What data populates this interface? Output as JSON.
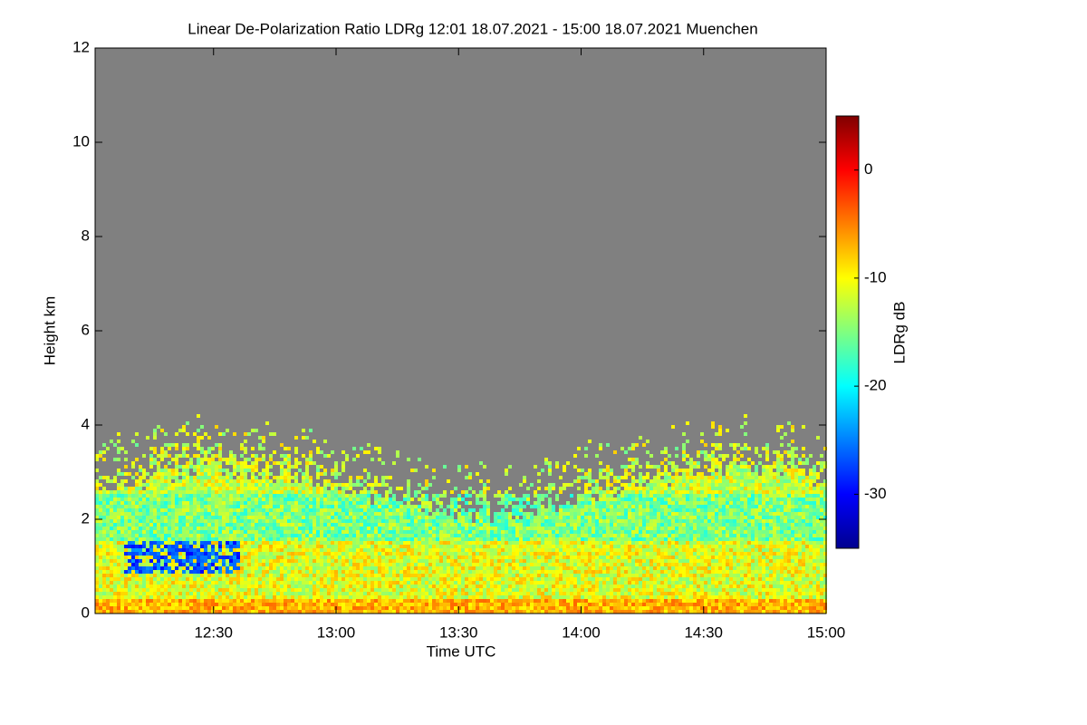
{
  "chart_data": {
    "type": "heatmap",
    "title": "Linear De-Polarization Ratio LDRg   12:01 18.07.2021 - 15:00 18.07.2021 Muenchen",
    "x_label": "Time UTC",
    "y_label": "Height km",
    "colorbar_label": "LDRg dB",
    "xlim": [
      721,
      900
    ],
    "xticks": [
      {
        "value": 750,
        "label": "12:30"
      },
      {
        "value": 780,
        "label": "13:00"
      },
      {
        "value": 810,
        "label": "13:30"
      },
      {
        "value": 840,
        "label": "14:00"
      },
      {
        "value": 870,
        "label": "14:30"
      },
      {
        "value": 900,
        "label": "15:00"
      }
    ],
    "ylim": [
      0,
      12
    ],
    "yticks": [
      0,
      2,
      4,
      6,
      8,
      10,
      12
    ],
    "clim": [
      -35,
      5
    ],
    "cticks": [
      0,
      -10,
      -20,
      -30
    ],
    "colormap": "jet",
    "background": "#808080"
  }
}
